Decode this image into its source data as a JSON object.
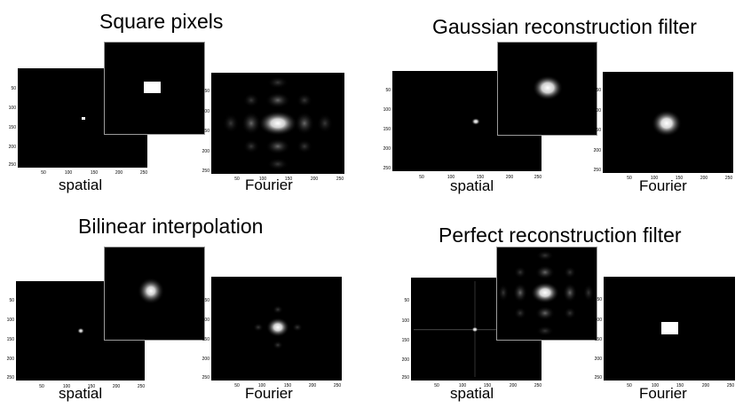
{
  "panels": [
    {
      "id": "square-pixels",
      "title": "Square pixels",
      "spatial_label": "spatial",
      "fourier_label": "Fourier",
      "spatial_ticks_x": [
        "50",
        "100",
        "150",
        "200",
        "250"
      ],
      "spatial_ticks_y": [
        "50",
        "100",
        "150",
        "200",
        "250"
      ],
      "fourier_ticks_x": [
        "50",
        "100",
        "150",
        "200",
        "250"
      ],
      "fourier_ticks_y": [
        "50",
        "100",
        "150",
        "200",
        "250"
      ]
    },
    {
      "id": "gaussian",
      "title": "Gaussian reconstruction filter",
      "spatial_label": "spatial",
      "fourier_label": "Fourier",
      "spatial_ticks_x": [
        "50",
        "100",
        "150",
        "200",
        "250"
      ],
      "spatial_ticks_y": [
        "50",
        "100",
        "150",
        "200",
        "250"
      ],
      "fourier_ticks_x": [
        "50",
        "100",
        "150",
        "200",
        "250"
      ],
      "fourier_ticks_y": [
        "50",
        "100",
        "150",
        "200",
        "250"
      ]
    },
    {
      "id": "bilinear",
      "title": "Bilinear interpolation",
      "spatial_label": "spatial",
      "fourier_label": "Fourier",
      "spatial_ticks_x": [
        "50",
        "100",
        "150",
        "200",
        "250"
      ],
      "spatial_ticks_y": [
        "50",
        "100",
        "150",
        "200",
        "250"
      ],
      "fourier_ticks_x": [
        "50",
        "100",
        "150",
        "200",
        "250"
      ],
      "fourier_ticks_y": [
        "50",
        "100",
        "150",
        "200",
        "250"
      ]
    },
    {
      "id": "perfect",
      "title": "Perfect reconstruction filter",
      "spatial_label": "spatial",
      "fourier_label": "Fourier",
      "spatial_ticks_x": [
        "50",
        "100",
        "150",
        "200",
        "250"
      ],
      "spatial_ticks_y": [
        "50",
        "100",
        "150",
        "200",
        "250"
      ],
      "fourier_ticks_x": [
        "50",
        "100",
        "150",
        "200",
        "250"
      ],
      "fourier_ticks_y": [
        "50",
        "100",
        "150",
        "200",
        "250"
      ]
    }
  ]
}
